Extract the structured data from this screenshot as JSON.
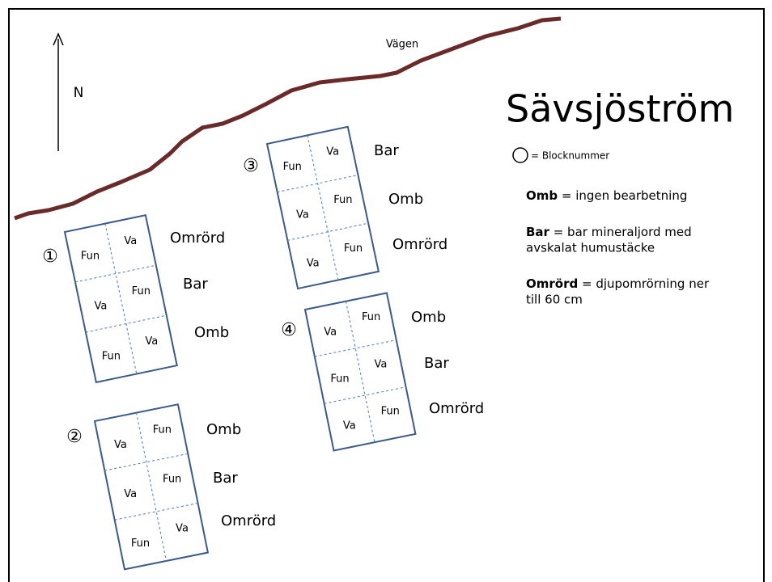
{
  "title": "Sävsjöström",
  "road_label": "Vägen",
  "north": "N",
  "legend": {
    "block_number": "= Blocknummer",
    "items": [
      {
        "term": "Omb",
        "text": " = ingen bearbetning"
      },
      {
        "term": "Bar",
        "text": " = bar mineraljord  med",
        "text2": "avskalat humustäcke"
      },
      {
        "term": "Omrörd",
        "text": " = djupomrörning ner",
        "text2": "till 60 cm"
      }
    ]
  },
  "blocks": [
    {
      "number": "①",
      "rows": [
        {
          "cells": [
            "Fun",
            "Va"
          ],
          "label": "Omrörd"
        },
        {
          "cells": [
            "Va",
            "Fun"
          ],
          "label": "Bar"
        },
        {
          "cells": [
            "Fun",
            "Va"
          ],
          "label": "Omb"
        }
      ]
    },
    {
      "number": "②",
      "rows": [
        {
          "cells": [
            "Va",
            "Fun"
          ],
          "label": "Omb"
        },
        {
          "cells": [
            "Va",
            "Fun"
          ],
          "label": "Bar"
        },
        {
          "cells": [
            "Fun",
            "Va"
          ],
          "label": "Omrörd"
        }
      ]
    },
    {
      "number": "③",
      "rows": [
        {
          "cells": [
            "Fun",
            "Va"
          ],
          "label": "Bar"
        },
        {
          "cells": [
            "Va",
            "Fun"
          ],
          "label": "Omb"
        },
        {
          "cells": [
            "Va",
            "Fun"
          ],
          "label": "Omrörd"
        }
      ]
    },
    {
      "number": "④",
      "rows": [
        {
          "cells": [
            "Va",
            "Fun"
          ],
          "label": "Omb"
        },
        {
          "cells": [
            "Fun",
            "Va"
          ],
          "label": "Bar"
        },
        {
          "cells": [
            "Va",
            "Fun"
          ],
          "label": "Omrörd"
        }
      ]
    }
  ]
}
